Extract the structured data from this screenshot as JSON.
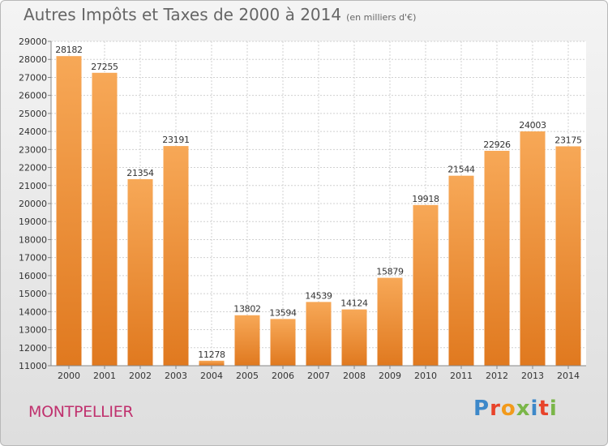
{
  "header": {
    "title": "Autres Impôts et Taxes de 2000 à 2014",
    "subtitle": "(en milliers d'€)"
  },
  "footer": {
    "location": "MONTPELLIER",
    "logo_letters": [
      "P",
      "r",
      "o",
      "x",
      "i",
      "t",
      "i"
    ]
  },
  "colors": {
    "bar_top": "#f7a857",
    "bar_bottom": "#e0791f",
    "logo": [
      "#3d88c9",
      "#e8432a",
      "#f29a1b",
      "#7ab648",
      "#3d88c9",
      "#e8432a",
      "#7ab648"
    ]
  },
  "chart_data": {
    "type": "bar",
    "title": "Autres Impôts et Taxes de 2000 à 2014",
    "subtitle": "(en milliers d'€)",
    "categories": [
      "2000",
      "2001",
      "2002",
      "2003",
      "2004",
      "2005",
      "2006",
      "2007",
      "2008",
      "2009",
      "2010",
      "2011",
      "2012",
      "2013",
      "2014"
    ],
    "values": [
      28182,
      27255,
      21354,
      23191,
      11278,
      13802,
      13594,
      14539,
      14124,
      15879,
      19918,
      21544,
      22926,
      24003,
      23175
    ],
    "yticks": [
      11000,
      12000,
      13000,
      14000,
      15000,
      16000,
      17000,
      18000,
      19000,
      20000,
      21000,
      22000,
      23000,
      24000,
      25000,
      26000,
      27000,
      28000,
      29000
    ],
    "ylim": [
      11000,
      29000
    ],
    "grid": true,
    "legend": "none"
  }
}
